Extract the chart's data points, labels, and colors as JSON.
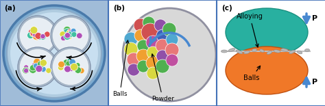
{
  "fig_width": 4.74,
  "fig_height": 1.55,
  "dpi": 100,
  "border_color": "#4472b8",
  "panel_bg_a": "#a0bcd8",
  "ball_colors_small": [
    "#e05050",
    "#50b850",
    "#b050b8",
    "#f0a030",
    "#50a0d8",
    "#d8d840",
    "#40c0a0"
  ],
  "ball_colors_b": [
    "#e87878",
    "#d05050",
    "#50b050",
    "#9050a8",
    "#c050a0",
    "#f0a030",
    "#e8a040",
    "#50c080",
    "#d8d840",
    "#50a8d0",
    "#4060b8",
    "#80b840"
  ],
  "teal_color": "#28b0a0",
  "orange_color": "#f07828",
  "arrow_blue": "#4888d0",
  "label_a": "(a)",
  "label_b": "(b)",
  "label_c": "(c)",
  "text_balls": "Balls",
  "text_powder": "Powder",
  "text_alloying": "Alloying",
  "text_balls_c": "Balls",
  "text_p": "P"
}
